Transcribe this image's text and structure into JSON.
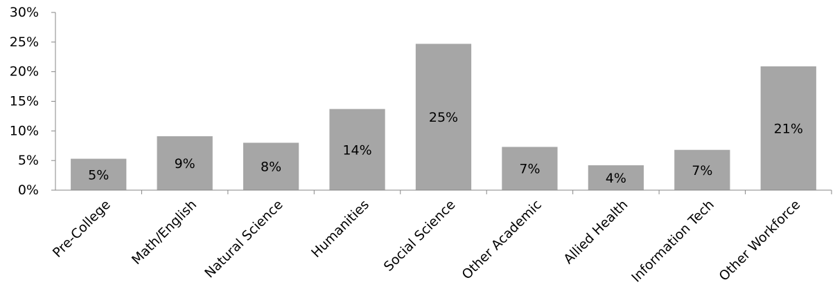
{
  "chart_data": {
    "type": "bar",
    "categories": [
      "Pre-College",
      "Math/English",
      "Natural Science",
      "Humanities",
      "Social Science",
      "Other Academic",
      "Allied Health",
      "Information Tech",
      "Other Workforce"
    ],
    "values": [
      5.3,
      9.1,
      8.0,
      13.7,
      24.7,
      7.3,
      4.2,
      6.8,
      20.9
    ],
    "data_labels": [
      "5%",
      "9%",
      "8%",
      "14%",
      "25%",
      "7%",
      "4%",
      "7%",
      "21%"
    ],
    "yticks": [
      "0%",
      "5%",
      "10%",
      "15%",
      "20%",
      "25%",
      "30%"
    ],
    "ylim": [
      0,
      30
    ],
    "title": "",
    "xlabel": "",
    "ylabel": "",
    "grid": false,
    "legend": "none",
    "bar_color": "#a6a6a6",
    "axis_color": "#868686"
  }
}
